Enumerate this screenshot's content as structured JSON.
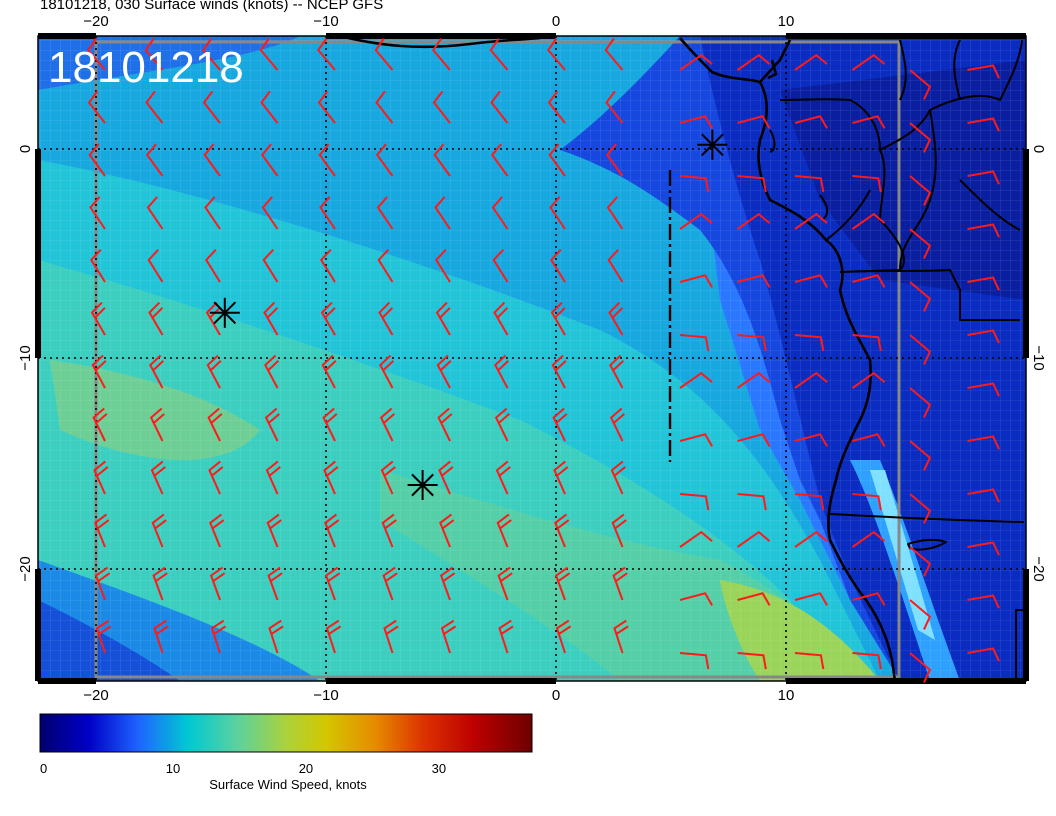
{
  "header": {
    "title": "18101218, 030 Surface winds (knots) -- NCEP GFS"
  },
  "map": {
    "stamp": "18101218",
    "lon_labels": [
      "−20",
      "−10",
      "0",
      "10"
    ],
    "lat_labels": [
      "0",
      "−10",
      "−20"
    ],
    "lon_range": [
      -22.5,
      20.5
    ],
    "lat_range": [
      -25.5,
      5.0
    ],
    "wind_barb_color": "#ff1a1a",
    "coast_color": "#000000",
    "grid": "dotted",
    "markers": [
      {
        "type": "asterisk",
        "lon": -14.4,
        "lat": -7.8
      },
      {
        "type": "asterisk",
        "lon": -5.8,
        "lat": -16.0
      },
      {
        "type": "asterisk",
        "lon": 6.8,
        "lat": 0.2
      }
    ]
  },
  "colorbar": {
    "label": "Surface Wind Speed, knots",
    "ticks": [
      "0",
      "10",
      "20",
      "30"
    ],
    "tick_values": [
      0,
      10,
      20,
      30
    ],
    "range": [
      0,
      37
    ],
    "colors": [
      "#00006e",
      "#0000c8",
      "#1e64ff",
      "#00c8d2",
      "#5ad2a0",
      "#aad23c",
      "#d2c800",
      "#e68c00",
      "#dc3200",
      "#be0000",
      "#6e0000"
    ]
  }
}
